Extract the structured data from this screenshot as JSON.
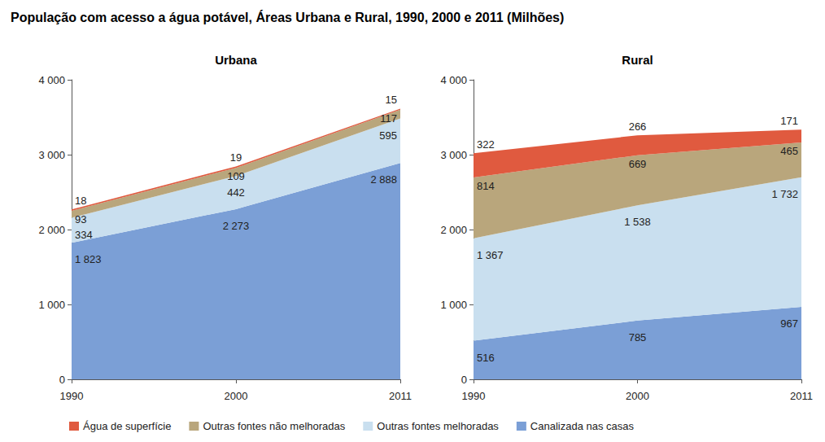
{
  "title": "População com acesso a água potável, Áreas Urbana e Rural, 1990, 2000 e 2011 (Milhões)",
  "chart_data": [
    {
      "type": "area",
      "title": "Urbana",
      "stacked": true,
      "data_labels": true,
      "grid": false,
      "legend": "bottom left",
      "categories": [
        "1990",
        "2000",
        "2011"
      ],
      "ylim": [
        0,
        4000
      ],
      "yticks": [
        0,
        {
          "value": 1000,
          "label": "1 000"
        },
        {
          "value": 2000,
          "label": "2 000"
        },
        {
          "value": 3000,
          "label": "3 000"
        },
        {
          "value": 4000,
          "label": "4 000"
        }
      ],
      "series": [
        {
          "name": "Água de superfície",
          "color": "#e05a3f",
          "values": [
            18,
            19,
            15
          ]
        },
        {
          "name": "Outras fontes não melhoradas",
          "color": "#b9a67c",
          "values": [
            93,
            109,
            117
          ]
        },
        {
          "name": "Outras fontes melhoradas",
          "color": "#c9dfef",
          "values": [
            334,
            442,
            595
          ]
        },
        {
          "name": "Canalizada nas casas",
          "color": "#7b9fd6",
          "values": [
            1823,
            2273,
            2888
          ],
          "value_labels": [
            "1 823",
            "2 273",
            "2 888"
          ]
        }
      ]
    },
    {
      "type": "area",
      "title": "Rural",
      "stacked": true,
      "data_labels": true,
      "grid": false,
      "legend": "bottom left",
      "categories": [
        "1990",
        "2000",
        "2011"
      ],
      "ylim": [
        0,
        4000
      ],
      "yticks": [
        0,
        {
          "value": 1000,
          "label": "1 000"
        },
        {
          "value": 2000,
          "label": "2 000"
        },
        {
          "value": 3000,
          "label": "3 000"
        },
        {
          "value": 4000,
          "label": "4 000"
        }
      ],
      "series": [
        {
          "name": "Água de superfície",
          "color": "#e05a3f",
          "values": [
            322,
            266,
            171
          ]
        },
        {
          "name": "Outras fontes não melhoradas",
          "color": "#b9a67c",
          "values": [
            814,
            669,
            465
          ]
        },
        {
          "name": "Outras fontes melhoradas",
          "color": "#c9dfef",
          "values": [
            1367,
            1538,
            1732
          ],
          "value_labels": [
            "1 367",
            "1 538",
            "1 732"
          ]
        },
        {
          "name": "Canalizada nas casas",
          "color": "#7b9fd6",
          "values": [
            516,
            785,
            967
          ]
        }
      ]
    }
  ]
}
